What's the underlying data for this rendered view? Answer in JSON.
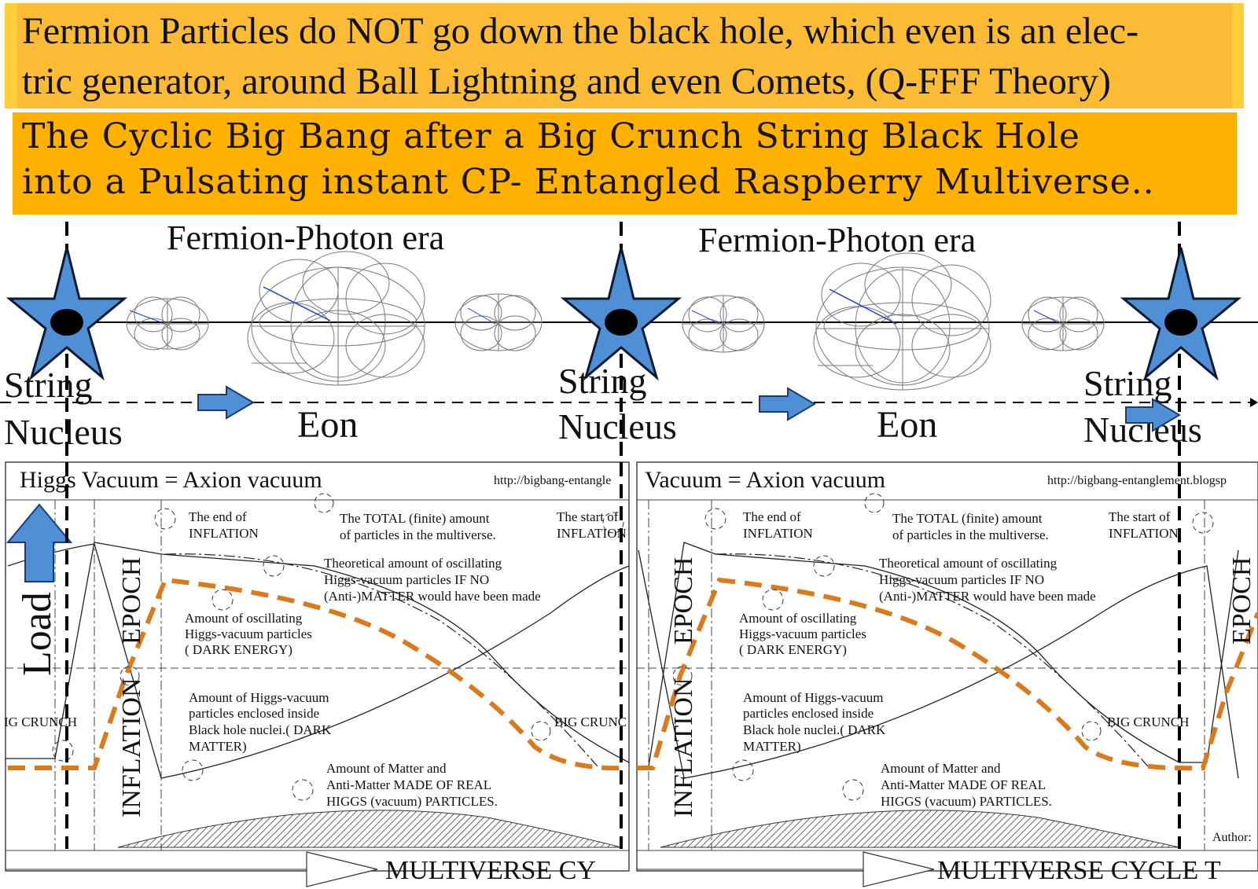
{
  "banners": {
    "top": "Fermion Particles do NOT go down the black hole, which even is an elec-\ntric generator, around Ball Lightning and even Comets,  (Q-FFF Theory)",
    "second": "The Cyclic Big Bang after a Big Crunch String Black Hole\ninto a Pulsating instant CP- Entangled Raspberry Multiverse.."
  },
  "eras": [
    "Fermion-Photon era",
    "Fermion-Photon era"
  ],
  "string_nucleus": [
    {
      "line1": "String",
      "line2": "Nucleus"
    },
    {
      "line1": "String",
      "line2": "Nucleus"
    },
    {
      "line1": "String",
      "line2": "Nucleus"
    }
  ],
  "eon_labels": [
    "Eon",
    "Eon"
  ],
  "load_label": "Load",
  "panels": [
    {
      "header": "Higgs Vacuum = Axion vacuum",
      "url": "http://bigbang-entangle",
      "end_inflation": [
        "The end of",
        "INFLATION"
      ],
      "total_amount": [
        "The TOTAL (finite) amount",
        "of particles in the multiverse."
      ],
      "start_inflation": [
        "The start of",
        "INFLATION"
      ],
      "theoretical": [
        "Theoretical amount of oscillating",
        "Higgs-vacuum particles IF NO",
        "(Anti-)MATTER would have been made"
      ],
      "dark_energy": [
        "Amount of oscillating",
        "Higgs-vacuum particles",
        "( DARK ENERGY)"
      ],
      "dark_matter": [
        "Amount of Higgs-vacuum",
        "particles enclosed inside",
        "Black hole nuclei.( DARK",
        "MATTER)"
      ],
      "matter": [
        "Amount of Matter and",
        "Anti-Matter MADE OF REAL",
        "HIGGS (vacuum) PARTICLES."
      ],
      "big_crunch_left": "IG CRUNCH",
      "big_crunch_right": "BIG CRUNC",
      "inflation": "INFLATION",
      "epoch": "EPOCH",
      "cycle": "MULTIVERSE CY"
    },
    {
      "header": "Vacuum = Axion vacuum",
      "url": "http://bigbang-entanglement.blogsp",
      "end_inflation": [
        "The end of",
        "INFLATION"
      ],
      "total_amount": [
        "The TOTAL (finite) amount",
        "of particles in the multiverse."
      ],
      "start_inflation": [
        "The start of",
        "INFLATION"
      ],
      "theoretical": [
        "Theoretical amount of oscillating",
        "Higgs-vacuum particles IF NO",
        "(Anti-)MATTER would have been made"
      ],
      "dark_energy": [
        "Amount of oscillating",
        "Higgs-vacuum particles",
        "( DARK ENERGY)"
      ],
      "dark_matter": [
        "Amount of Higgs-vacuum",
        "particles enclosed inside",
        "Black hole nuclei.( DARK",
        "MATTER)"
      ],
      "matter": [
        "Amount of Matter and",
        "Anti-Matter MADE OF REAL",
        "HIGGS (vacuum) PARTICLES."
      ],
      "big_crunch_right": "BIG CRUNCH",
      "inflation": "INFLATION",
      "epoch": "EPOCH",
      "author": "Author:",
      "cycle": "MULTIVERSE CYCLE T"
    }
  ],
  "colors": {
    "banner_top": "#fbbb35",
    "banner_second": "#ffb100",
    "star_fill": "#4f8fd6",
    "star_stroke": "#0a1a33",
    "orange_dash": "#d97a1c",
    "arrow_fill": "#4f8fd6"
  }
}
